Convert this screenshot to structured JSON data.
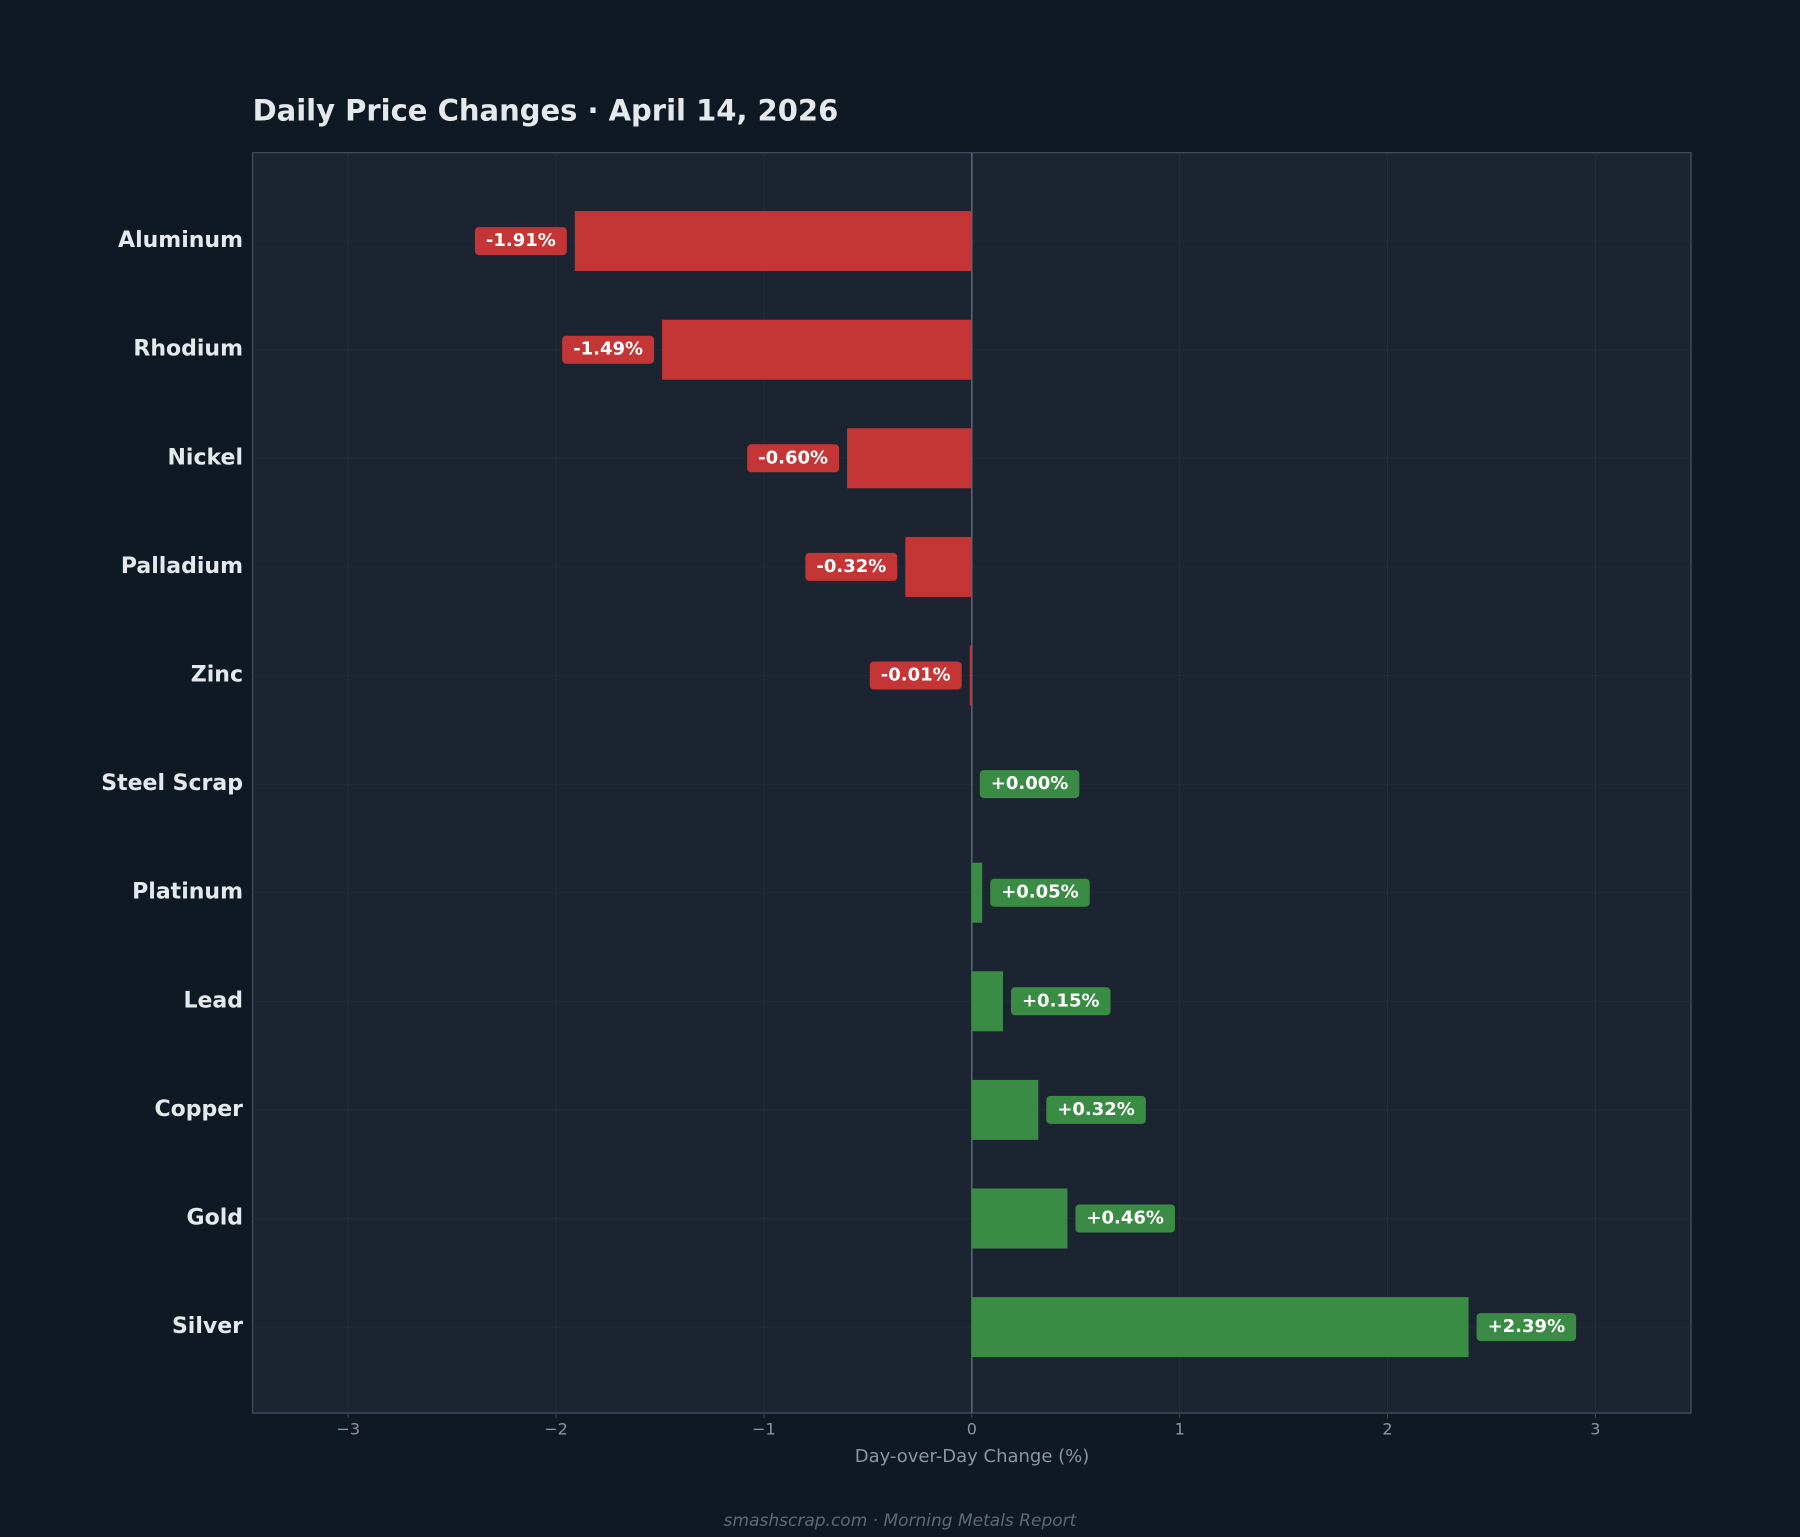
{
  "chart_data": {
    "type": "barh",
    "title": "Daily Price Changes  ·  April 14, 2026",
    "xlabel": "Day-over-Day Change (%)",
    "footer": "smashscrap.com  ·  Morning Metals Report",
    "categories": [
      "Aluminum",
      "Rhodium",
      "Nickel",
      "Palladium",
      "Zinc",
      "Steel Scrap",
      "Platinum",
      "Lead",
      "Copper",
      "Gold",
      "Silver"
    ],
    "values": [
      -1.91,
      -1.49,
      -0.6,
      -0.32,
      -0.01,
      0.0,
      0.05,
      0.15,
      0.32,
      0.46,
      2.39
    ],
    "value_labels": [
      "-1.91%",
      "-1.49%",
      "-0.60%",
      "-0.32%",
      "-0.01%",
      "+0.00%",
      "+0.05%",
      "+0.15%",
      "+0.32%",
      "+0.46%",
      "+2.39%"
    ],
    "positive_color": "#3a8c44",
    "negative_color": "#c43535",
    "xlim": [
      -3.46,
      3.46
    ],
    "xticks": [
      {
        "value": -3,
        "label": "−3"
      },
      {
        "value": -2,
        "label": "−2"
      },
      {
        "value": -1,
        "label": "−1"
      },
      0,
      1,
      2,
      3
    ],
    "grid": true
  }
}
